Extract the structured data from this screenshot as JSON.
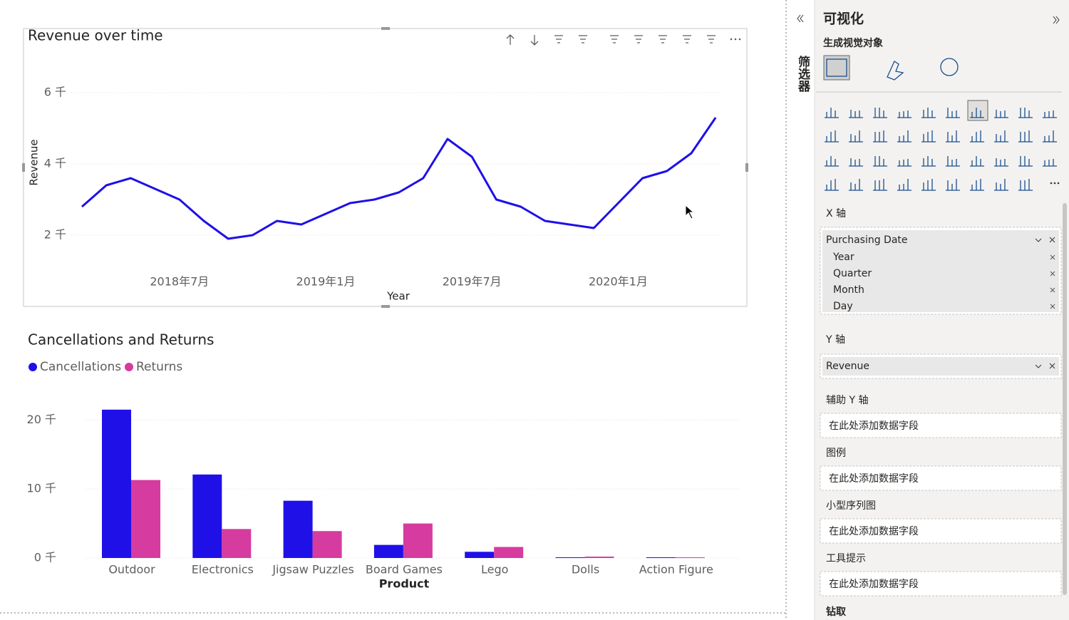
{
  "chart_data": [
    {
      "type": "line",
      "title": "Revenue over time",
      "x_label": "Year",
      "y_label": "Revenue",
      "x": [
        "2018-03",
        "2018-04",
        "2018-05",
        "2018-06",
        "2018-07",
        "2018-08",
        "2018-09",
        "2018-10",
        "2018-11",
        "2018-12",
        "2019-01",
        "2019-02",
        "2019-03",
        "2019-04",
        "2019-05",
        "2019-06",
        "2019-07",
        "2019-08",
        "2019-09",
        "2019-10",
        "2019-11",
        "2019-12",
        "2020-01",
        "2020-02",
        "2020-03",
        "2020-04",
        "2020-05"
      ],
      "series": [
        {
          "name": "Revenue",
          "color": "#1f10e8",
          "values": [
            2800,
            3400,
            3600,
            3300,
            3000,
            2400,
            1900,
            2000,
            2400,
            2300,
            2600,
            2900,
            3000,
            3200,
            3600,
            4700,
            4200,
            3000,
            2800,
            2400,
            2300,
            2200,
            2900,
            3600,
            3800,
            4300,
            5300
          ]
        }
      ],
      "xticks": [
        {
          "value": "2018-07",
          "label": "2018年7月"
        },
        {
          "value": "2019-01",
          "label": "2019年1月"
        },
        {
          "value": "2019-07",
          "label": "2019年7月"
        },
        {
          "value": "2020-01",
          "label": "2020年1月"
        }
      ],
      "ylim": [
        1000,
        6400
      ],
      "yticks": [
        {
          "value": 2000,
          "label": "2 千"
        },
        {
          "value": 4000,
          "label": "4 千"
        },
        {
          "value": 6000,
          "label": "6 千"
        }
      ],
      "grid": true
    },
    {
      "type": "bar",
      "title": "Cancellations and Returns",
      "x_label": "Product",
      "categories": [
        "Outdoor",
        "Electronics",
        "Jigsaw Puzzles",
        "Board Games",
        "Lego",
        "Dolls",
        "Action Figure"
      ],
      "series": [
        {
          "name": "Cancellations",
          "color": "#1f10e8",
          "values": [
            21500,
            12100,
            8300,
            1900,
            900,
            100,
            100
          ]
        },
        {
          "name": "Returns",
          "color": "#d63b9f",
          "values": [
            11300,
            4200,
            3900,
            5000,
            1600,
            200,
            100
          ]
        }
      ],
      "ylim": [
        0,
        22000
      ],
      "yticks": [
        {
          "value": 0,
          "label": "0 千"
        },
        {
          "value": 10000,
          "label": "10 千"
        },
        {
          "value": 20000,
          "label": "20 千"
        }
      ],
      "grid": true,
      "legend": "top-left"
    }
  ],
  "panel": {
    "title": "可视化",
    "filters_tab": "筛选器",
    "subtitle": "生成视觉对象",
    "x_axis": {
      "label": "X 轴",
      "field": "Purchasing Date",
      "hierarchy": [
        "Year",
        "Quarter",
        "Month",
        "Day"
      ]
    },
    "y_axis": {
      "label": "Y 轴",
      "field": "Revenue"
    },
    "empty_wells": [
      {
        "label": "辅助 Y 轴",
        "placeholder": "在此处添加数据字段"
      },
      {
        "label": "图例",
        "placeholder": "在此处添加数据字段"
      },
      {
        "label": "小型序列图",
        "placeholder": "在此处添加数据字段"
      },
      {
        "label": "工具提示",
        "placeholder": "在此处添加数据字段"
      }
    ],
    "drill": "钻取"
  }
}
